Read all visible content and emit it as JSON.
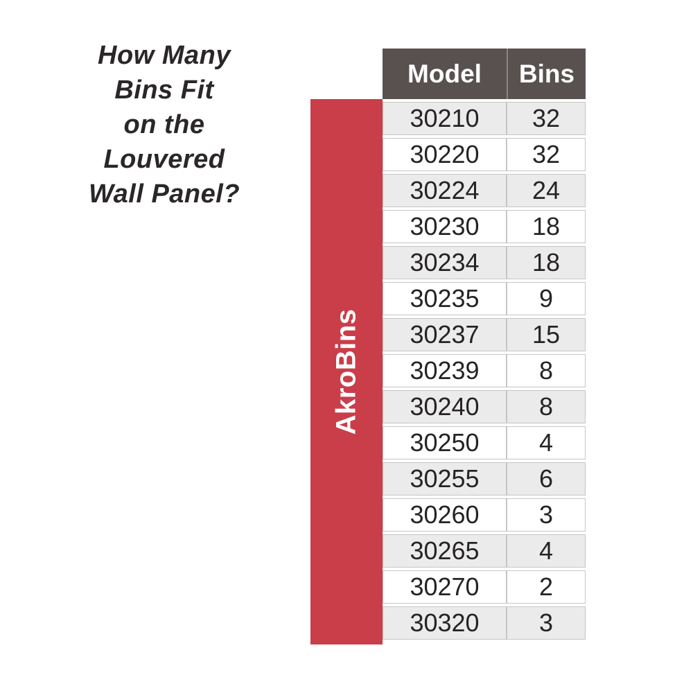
{
  "chart_data": {
    "type": "table",
    "title": "How Many Bins Fit on the Louvered Wall Panel?",
    "columns": [
      "Model",
      "Bins"
    ],
    "rows": [
      [
        "30210",
        32
      ],
      [
        "30220",
        32
      ],
      [
        "30224",
        24
      ],
      [
        "30230",
        18
      ],
      [
        "30234",
        18
      ],
      [
        "30235",
        9
      ],
      [
        "30237",
        15
      ],
      [
        "30239",
        8
      ],
      [
        "30240",
        8
      ],
      [
        "30250",
        4
      ],
      [
        "30255",
        6
      ],
      [
        "30260",
        3
      ],
      [
        "30265",
        4
      ],
      [
        "30270",
        2
      ],
      [
        "30320",
        3
      ]
    ]
  },
  "title": {
    "lines": [
      "How Many",
      "Bins Fit",
      "on the",
      "Louvered",
      "Wall Panel?"
    ]
  },
  "banner": {
    "label": "AkroBins"
  },
  "table": {
    "headers": {
      "model": "Model",
      "bins": "Bins"
    }
  },
  "colors": {
    "banner_red": "#c93e49",
    "header_gray": "#595150",
    "header_divider": "#8b8584",
    "row_alt_gray": "#ecebeb",
    "row_border": "#c7c4c4",
    "text_dark": "#2b2728"
  }
}
